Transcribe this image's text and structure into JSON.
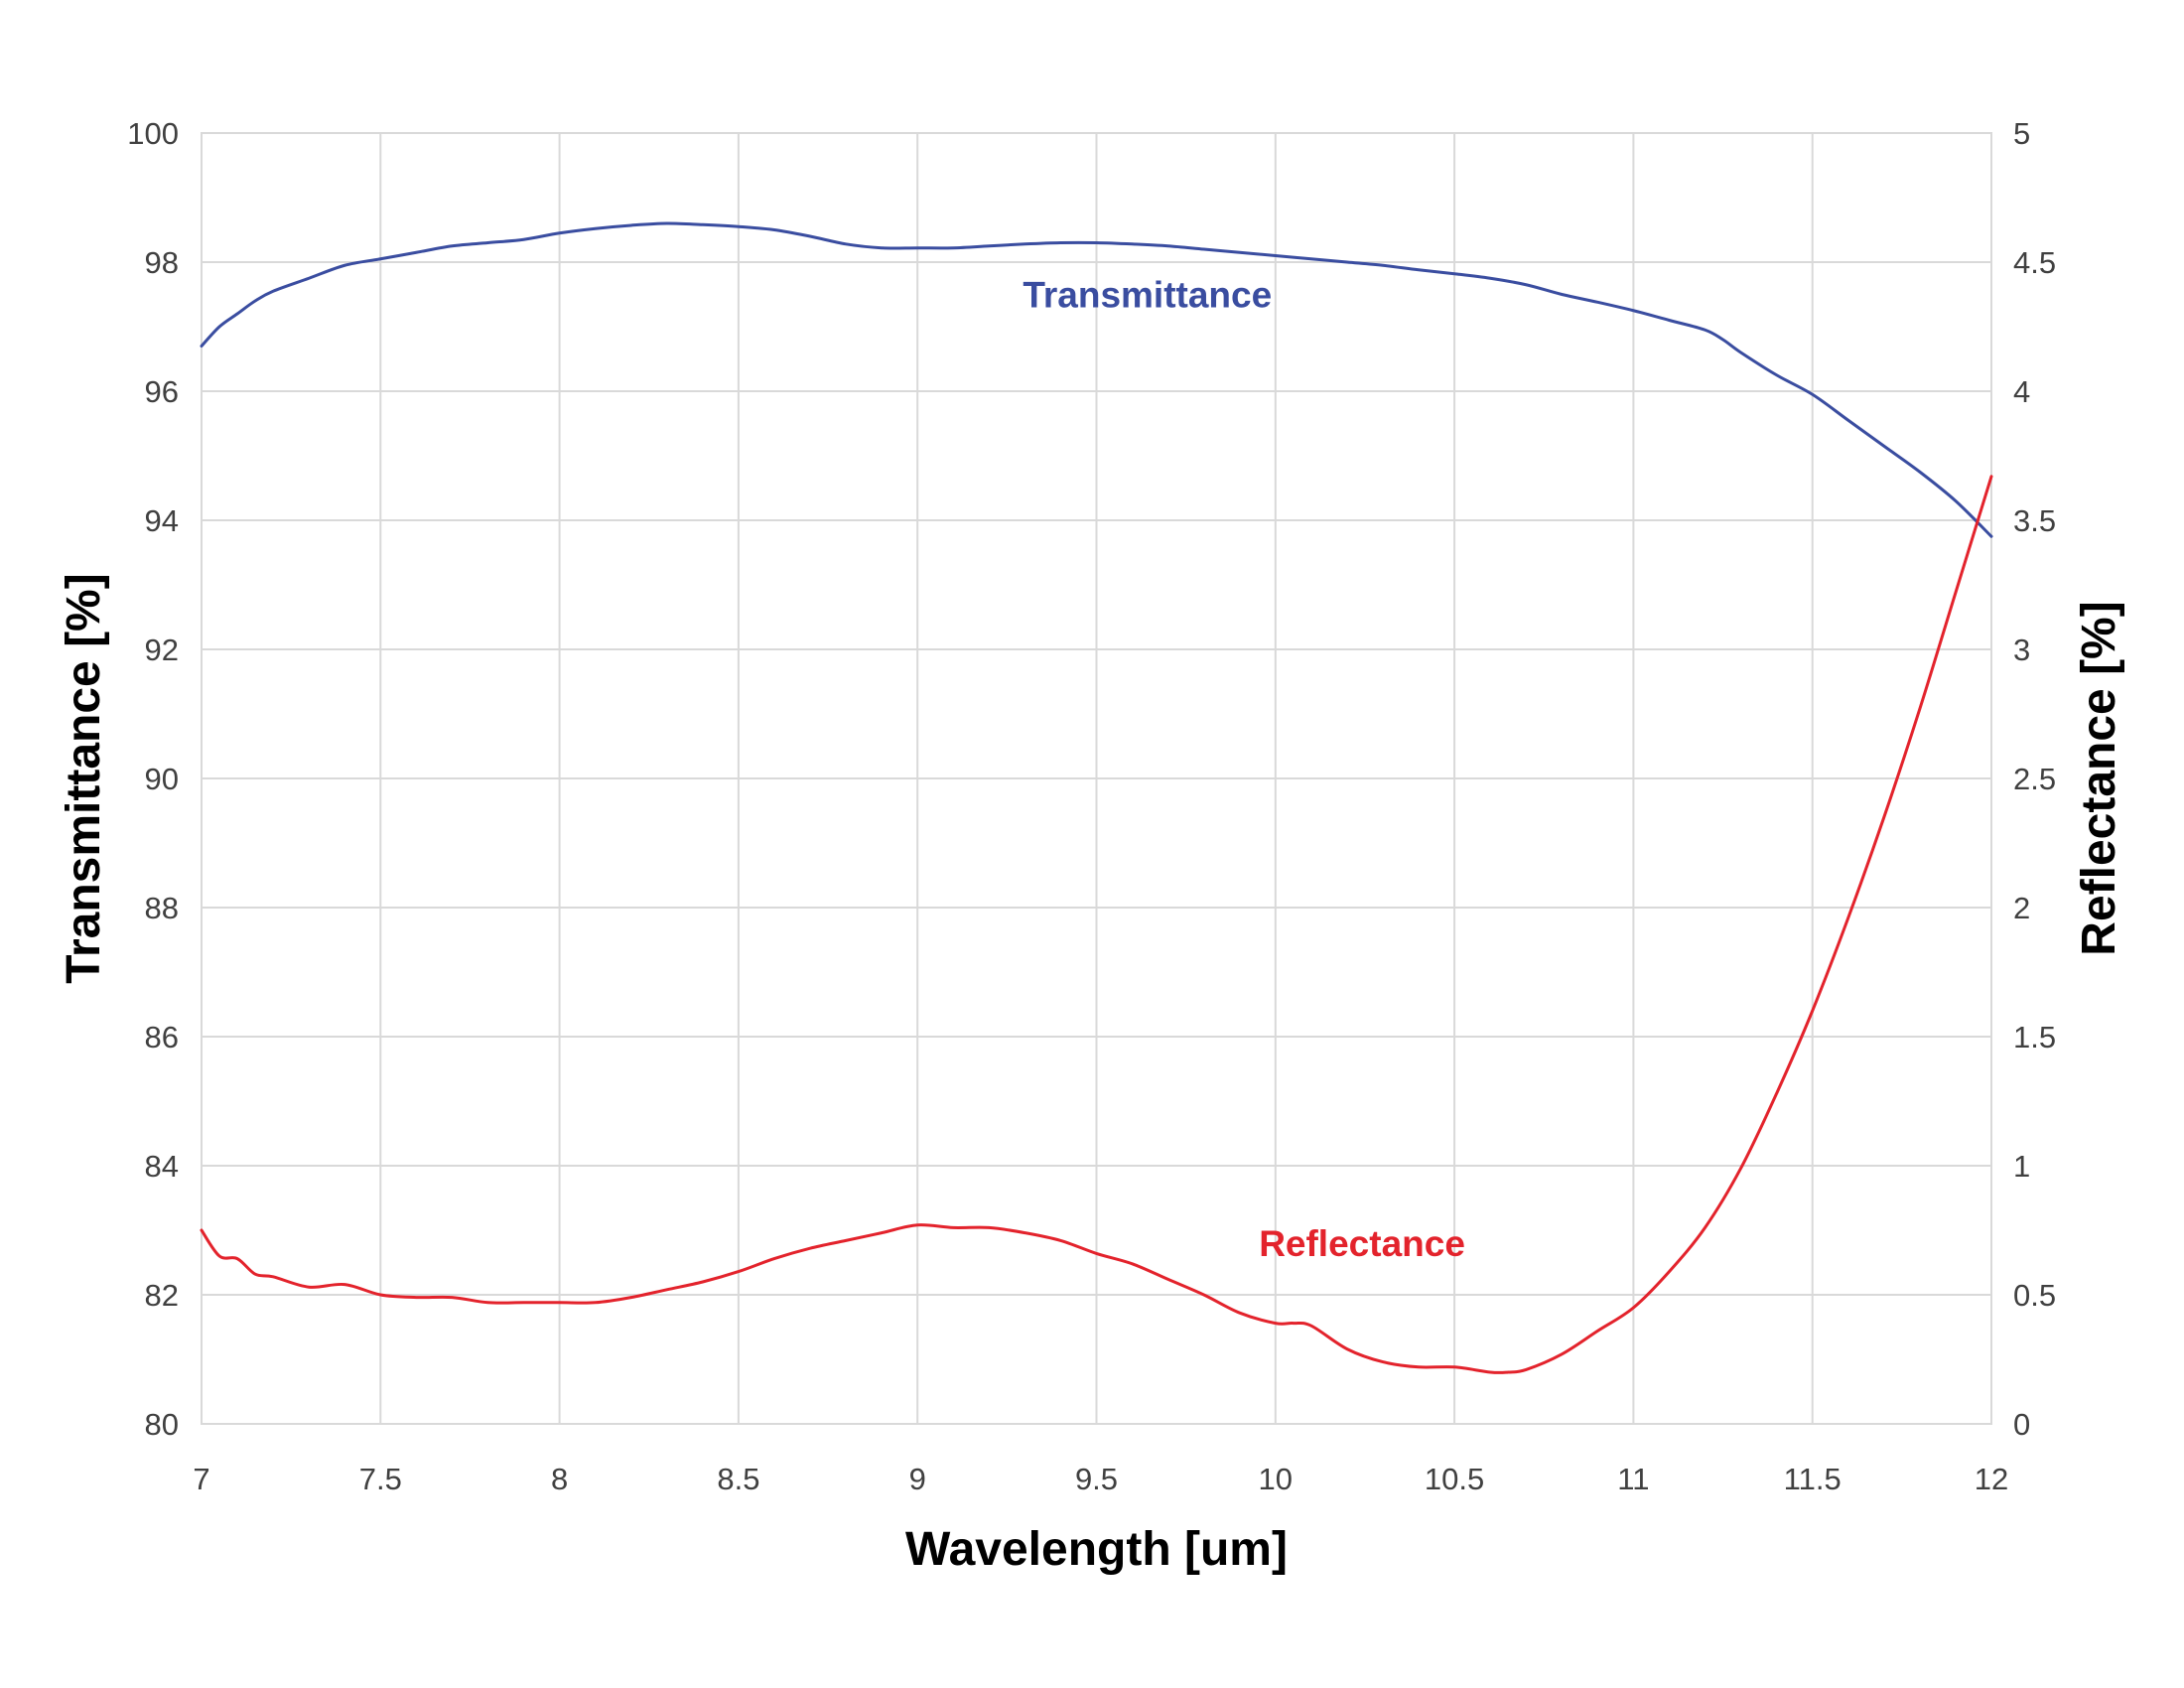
{
  "chart_data": {
    "type": "line",
    "title": "",
    "xlabel": "Wavelength [um]",
    "ylabel": "Transmittance [%]",
    "y2label": "Reflectance [%]",
    "xlim": [
      7,
      12
    ],
    "ylim": [
      80,
      100
    ],
    "y2lim": [
      0,
      5
    ],
    "grid": true,
    "x_ticks": [
      "7",
      "7.5",
      "8",
      "8.5",
      "9",
      "9.5",
      "10",
      "10.5",
      "11",
      "11.5",
      "12"
    ],
    "y_ticks": [
      "80",
      "82",
      "84",
      "86",
      "88",
      "90",
      "92",
      "94",
      "96",
      "98",
      "100"
    ],
    "y2_ticks": [
      "0",
      "0.5",
      "1",
      "1.5",
      "2",
      "2.5",
      "3",
      "3.5",
      "4",
      "4.5",
      "5"
    ],
    "series": [
      {
        "name": "Transmittance",
        "axis": "left",
        "color": "#3a4da0",
        "label_position": [
          9.99,
          97.3
        ],
        "x": [
          7.0,
          7.05,
          7.1,
          7.15,
          7.2,
          7.3,
          7.4,
          7.5,
          7.6,
          7.7,
          7.8,
          7.9,
          8.0,
          8.1,
          8.2,
          8.3,
          8.4,
          8.5,
          8.6,
          8.7,
          8.8,
          8.9,
          9.0,
          9.1,
          9.2,
          9.3,
          9.4,
          9.5,
          9.6,
          9.7,
          9.8,
          9.9,
          10.0,
          10.1,
          10.2,
          10.3,
          10.4,
          10.5,
          10.6,
          10.7,
          10.8,
          10.9,
          11.0,
          11.1,
          11.2,
          11.25,
          11.3,
          11.4,
          11.5,
          11.6,
          11.7,
          11.8,
          11.9,
          12.0
        ],
        "values": [
          96.7,
          97.0,
          97.2,
          97.4,
          97.55,
          97.75,
          97.95,
          98.05,
          98.15,
          98.25,
          98.3,
          98.35,
          98.45,
          98.52,
          98.57,
          98.6,
          98.58,
          98.55,
          98.5,
          98.4,
          98.28,
          98.22,
          98.22,
          98.22,
          98.25,
          98.28,
          98.3,
          98.3,
          98.28,
          98.25,
          98.2,
          98.15,
          98.1,
          98.05,
          98.0,
          97.95,
          97.88,
          97.82,
          97.75,
          97.65,
          97.5,
          97.38,
          97.25,
          97.1,
          96.95,
          96.8,
          96.6,
          96.25,
          95.95,
          95.55,
          95.15,
          94.75,
          94.3,
          93.75
        ]
      },
      {
        "name": "Reflectance",
        "axis": "right",
        "color": "#e3232c",
        "label_position": [
          10.53,
          0.65
        ],
        "x": [
          7.0,
          7.05,
          7.1,
          7.15,
          7.2,
          7.3,
          7.4,
          7.5,
          7.6,
          7.7,
          7.8,
          7.9,
          8.0,
          8.1,
          8.2,
          8.3,
          8.4,
          8.5,
          8.6,
          8.7,
          8.8,
          8.9,
          9.0,
          9.1,
          9.2,
          9.3,
          9.4,
          9.5,
          9.6,
          9.7,
          9.8,
          9.9,
          10.0,
          10.05,
          10.1,
          10.2,
          10.3,
          10.4,
          10.5,
          10.6,
          10.65,
          10.7,
          10.8,
          10.9,
          11.0,
          11.1,
          11.2,
          11.3,
          11.4,
          11.5,
          11.6,
          11.7,
          11.8,
          11.9,
          12.0
        ],
        "values": [
          0.75,
          0.65,
          0.64,
          0.58,
          0.57,
          0.53,
          0.54,
          0.5,
          0.49,
          0.49,
          0.47,
          0.47,
          0.47,
          0.47,
          0.49,
          0.52,
          0.55,
          0.59,
          0.64,
          0.68,
          0.71,
          0.74,
          0.77,
          0.76,
          0.76,
          0.74,
          0.71,
          0.66,
          0.62,
          0.56,
          0.5,
          0.43,
          0.39,
          0.39,
          0.38,
          0.29,
          0.24,
          0.22,
          0.22,
          0.2,
          0.2,
          0.21,
          0.27,
          0.36,
          0.45,
          0.59,
          0.76,
          0.99,
          1.28,
          1.6,
          1.96,
          2.35,
          2.77,
          3.22,
          3.67
        ]
      }
    ]
  }
}
